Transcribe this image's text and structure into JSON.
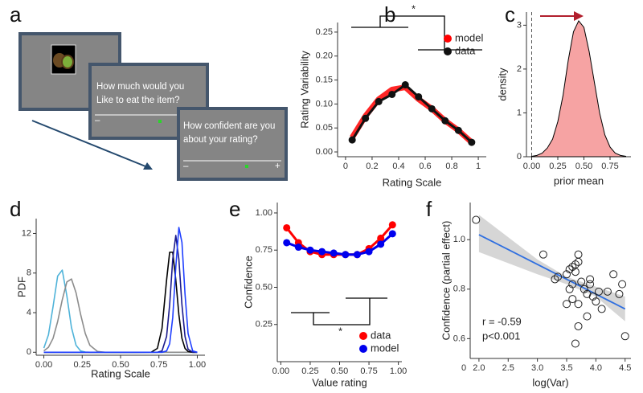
{
  "task": {
    "label": "a",
    "screen_2": {
      "question": [
        "How much would you",
        "Like to eat the item?"
      ],
      "left_sign": "–"
    },
    "screen_3": {
      "question": [
        "How confident are you",
        "about your rating?"
      ],
      "left_sign": "–",
      "right_sign": "+"
    }
  },
  "chart_data": [
    {
      "type": "line",
      "label": "b",
      "xlabel": "Rating Scale",
      "ylabel": "Rating Variability",
      "x": [
        0.05,
        0.15,
        0.25,
        0.35,
        0.45,
        0.55,
        0.65,
        0.75,
        0.85,
        0.95
      ],
      "series": [
        {
          "name": "model",
          "color": "#ff0000",
          "style": "thick",
          "values": [
            0.03,
            0.075,
            0.11,
            0.13,
            0.135,
            0.11,
            0.09,
            0.065,
            0.045,
            0.02
          ]
        },
        {
          "name": "data",
          "color": "#111111",
          "style": "points",
          "values": [
            0.025,
            0.07,
            0.105,
            0.12,
            0.14,
            0.115,
            0.09,
            0.065,
            0.045,
            0.02
          ]
        }
      ],
      "xlim": [
        -0.06,
        1.06
      ],
      "xticks": [
        0,
        0.2,
        0.4,
        0.6,
        0.8,
        1
      ],
      "ylim": [
        -0.01,
        0.27
      ],
      "yticks": [
        {
          "value": 0,
          "label": "0.00"
        },
        0.05,
        {
          "value": 0.1,
          "label": "0.10"
        },
        0.15,
        {
          "value": 0.2,
          "label": "0.20"
        },
        0.25
      ],
      "legend": "top-right",
      "annotations": [
        "*"
      ]
    },
    {
      "type": "area",
      "label": "c",
      "xlabel": "prior mean",
      "ylabel": "density",
      "color": "#f6a3a3",
      "x": [
        0,
        0.05,
        0.1,
        0.15,
        0.2,
        0.25,
        0.3,
        0.35,
        0.4,
        0.45,
        0.5,
        0.55,
        0.6,
        0.65,
        0.7,
        0.75,
        0.8,
        0.85,
        0.9
      ],
      "values": [
        0.01,
        0.03,
        0.08,
        0.2,
        0.4,
        0.8,
        1.4,
        2.2,
        2.85,
        3.1,
        2.95,
        2.4,
        1.7,
        1.0,
        0.5,
        0.22,
        0.08,
        0.03,
        0.01
      ],
      "xlim": [
        -0.05,
        0.95
      ],
      "xticks": [
        {
          "value": 0,
          "label": "0.00"
        },
        0.25,
        {
          "value": 0.5,
          "label": "0.50"
        },
        0.75
      ],
      "ylim": [
        0,
        3.3
      ],
      "yticks": [
        0,
        1,
        2,
        3
      ],
      "reference_line": 0
    },
    {
      "type": "line",
      "label": "d",
      "xlabel": "Rating Scale",
      "ylabel": "PDF",
      "x": [
        0,
        0.03,
        0.06,
        0.09,
        0.12,
        0.15,
        0.18,
        0.21,
        0.24,
        0.27,
        0.3,
        0.35,
        0.4,
        0.5,
        0.6,
        0.7,
        0.74,
        0.77,
        0.8,
        0.82,
        0.84,
        0.86,
        0.88,
        0.9,
        0.92,
        0.94,
        0.97,
        1.0
      ],
      "series": [
        {
          "color": "#4fb3d9",
          "values": [
            0.42,
            1.76,
            4.6,
            7.7,
            8.3,
            5.7,
            2.5,
            0.7,
            0.13,
            0.02,
            0,
            0,
            0,
            0,
            0,
            0,
            0,
            0,
            0,
            0,
            0,
            0,
            0,
            0,
            0,
            0,
            0,
            0
          ]
        },
        {
          "color": "#8c8c8c",
          "values": [
            0.14,
            0.5,
            1.4,
            3.1,
            5.3,
            7.1,
            7.4,
            6.0,
            3.8,
            1.9,
            0.7,
            0.08,
            0,
            0,
            0,
            0,
            0,
            0,
            0,
            0,
            0,
            0,
            0,
            0,
            0,
            0,
            0,
            0
          ]
        },
        {
          "color": "#000000",
          "values": [
            0,
            0,
            0,
            0,
            0,
            0,
            0,
            0,
            0,
            0,
            0,
            0,
            0,
            0,
            0,
            0.01,
            0.39,
            2.4,
            7.3,
            10.1,
            10.1,
            7.3,
            3.8,
            1.4,
            0.39,
            0.08,
            0,
            0
          ]
        },
        {
          "color": "#1a1a8c",
          "values": [
            0,
            0,
            0,
            0,
            0,
            0,
            0,
            0,
            0,
            0,
            0,
            0,
            0,
            0,
            0,
            0,
            0,
            0.13,
            1.6,
            4.8,
            9.4,
            11.8,
            9.4,
            4.8,
            1.6,
            0.3,
            0,
            0
          ]
        },
        {
          "color": "#1f3fff",
          "values": [
            0,
            0,
            0,
            0,
            0,
            0,
            0,
            0,
            0,
            0,
            0,
            0,
            0,
            0,
            0,
            0,
            0,
            0,
            0.13,
            0.86,
            3.5,
            8.6,
            12.6,
            11.1,
            5.9,
            1.9,
            0.13,
            0
          ]
        }
      ],
      "xlim": [
        -0.05,
        1.05
      ],
      "xticks": [
        {
          "value": 0,
          "label": "0.00"
        },
        0.25,
        {
          "value": 0.5,
          "label": "0.50"
        },
        0.75,
        {
          "value": 1,
          "label": "1.00"
        }
      ],
      "ylim": [
        -0.3,
        13.5
      ],
      "yticks": [
        0,
        4,
        8,
        12
      ]
    },
    {
      "type": "line",
      "label": "e",
      "xlabel": "Value rating",
      "ylabel": "Confidence",
      "x": [
        0.05,
        0.15,
        0.25,
        0.35,
        0.45,
        0.55,
        0.65,
        0.75,
        0.85,
        0.95
      ],
      "series": [
        {
          "name": "data",
          "color": "#ff0000",
          "style": "points",
          "values": [
            0.9,
            0.8,
            0.74,
            0.72,
            0.72,
            0.72,
            0.72,
            0.76,
            0.83,
            0.92
          ]
        },
        {
          "name": "model",
          "color": "#0000ee",
          "style": "points",
          "values": [
            0.8,
            0.77,
            0.75,
            0.74,
            0.73,
            0.72,
            0.72,
            0.74,
            0.79,
            0.86
          ]
        }
      ],
      "xlim": [
        -0.03,
        1.03
      ],
      "xticks": [
        {
          "value": 0,
          "label": "0.00"
        },
        0.25,
        {
          "value": 0.5,
          "label": "0.50"
        },
        0.75,
        {
          "value": 1,
          "label": "1.00"
        }
      ],
      "ylim": [
        0,
        1.07
      ],
      "yticks": [
        0.25,
        {
          "value": 0.5,
          "label": "0.50"
        },
        0.75,
        {
          "value": 1,
          "label": "1.00"
        }
      ],
      "legend": "bottom-right",
      "annotations": [
        "*"
      ]
    },
    {
      "type": "scatter",
      "label": "f",
      "xlabel": "log(Var)",
      "ylabel": "Confidence (partial effect)",
      "x": [
        1.95,
        3.1,
        3.3,
        3.35,
        3.5,
        3.55,
        3.6,
        3.65,
        3.7,
        3.7,
        3.65,
        3.6,
        3.55,
        3.6,
        3.7,
        3.5,
        3.75,
        3.8,
        3.85,
        3.9,
        3.95,
        4.0,
        4.05,
        4.1,
        3.85,
        3.7,
        3.65,
        4.3,
        4.4,
        4.45,
        4.5,
        3.9,
        4.2
      ],
      "values": [
        1.08,
        0.94,
        0.84,
        0.85,
        0.86,
        0.88,
        0.89,
        0.9,
        0.94,
        0.91,
        0.87,
        0.82,
        0.8,
        0.76,
        0.74,
        0.74,
        0.83,
        0.8,
        0.78,
        0.82,
        0.77,
        0.75,
        0.79,
        0.72,
        0.69,
        0.65,
        0.58,
        0.86,
        0.78,
        0.82,
        0.61,
        0.84,
        0.79
      ],
      "fit": {
        "color": "#2f6fe0",
        "x": [
          2,
          4.5
        ],
        "y": [
          1.02,
          0.72
        ]
      },
      "band": {
        "color": "#cccccc",
        "x": [
          2,
          3,
          3.5,
          4,
          4.5
        ],
        "lower": [
          0.95,
          0.86,
          0.82,
          0.77,
          0.67
        ],
        "upper": [
          1.1,
          0.92,
          0.85,
          0.81,
          0.77
        ]
      },
      "xlim": [
        1.85,
        4.6
      ],
      "xticks": [
        {
          "value": 2,
          "label": "2.0"
        },
        2.5,
        {
          "value": 3,
          "label": "3.0"
        },
        3.5,
        {
          "value": 4,
          "label": "4.0"
        },
        4.5
      ],
      "ylim": [
        0.52,
        1.15
      ],
      "yticks": [
        0.6,
        0.8,
        {
          "value": 1,
          "label": "1.0"
        }
      ],
      "axis_break_label": "0",
      "annotations": [
        "r = -0.59",
        "p<0.001"
      ]
    }
  ]
}
